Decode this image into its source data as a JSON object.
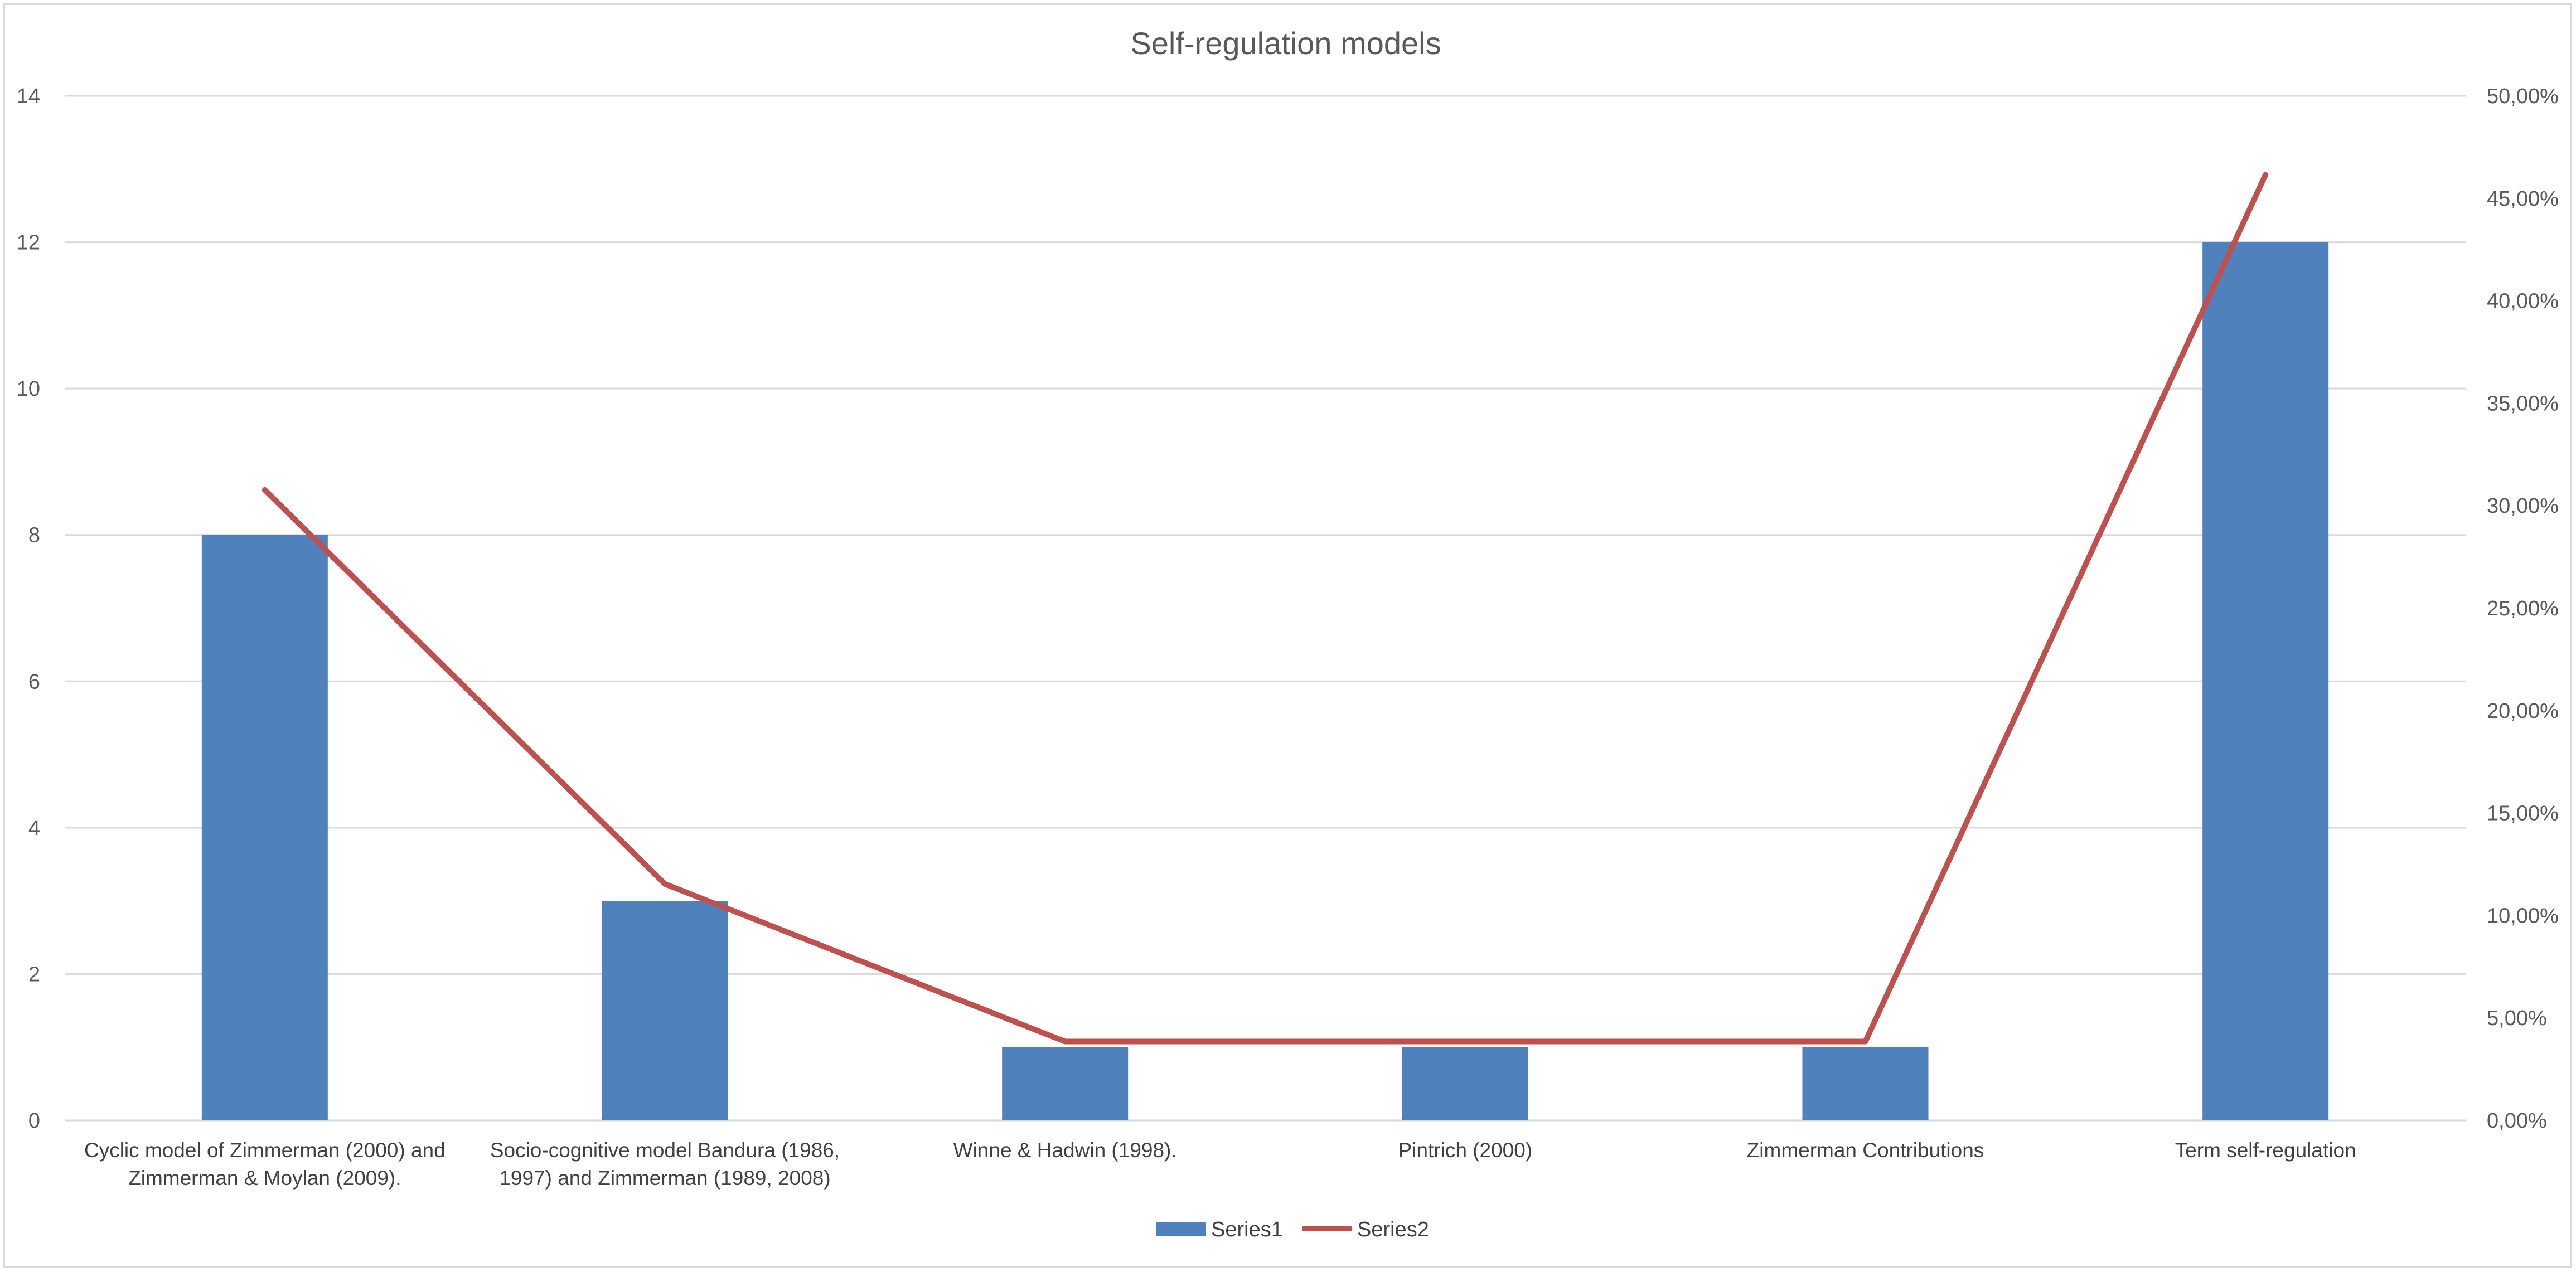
{
  "chart_data": {
    "type": "bar",
    "title": "Self-regulation models",
    "categories": [
      [
        "Cyclic model of Zimmerman (2000) and",
        "Zimmerman & Moylan (2009)."
      ],
      [
        "Socio-cognitive model Bandura (1986,",
        "1997) and  Zimmerman (1989, 2008)"
      ],
      [
        "Winne & Hadwin (1998)."
      ],
      [
        "Pintrich (2000)"
      ],
      [
        "Zimmerman Contributions"
      ],
      [
        "Term self-regulation"
      ]
    ],
    "series": [
      {
        "name": "Series1",
        "type": "bar",
        "axis": "left",
        "color": "#4f81bd",
        "values": [
          8,
          3,
          1,
          1,
          1,
          12
        ]
      },
      {
        "name": "Series2",
        "type": "line",
        "axis": "right",
        "color": "#c0504d",
        "values": [
          0.3077,
          0.1154,
          0.0385,
          0.0385,
          0.0385,
          0.4615
        ]
      }
    ],
    "y_left": {
      "min": 0,
      "max": 14,
      "ticks": [
        "0",
        "2",
        "4",
        "6",
        "8",
        "10",
        "12",
        "14"
      ],
      "tick_values": [
        0,
        2,
        4,
        6,
        8,
        10,
        12,
        14
      ]
    },
    "y_right": {
      "min": 0,
      "max": 0.5,
      "ticks": [
        "0,00%",
        "5,00%",
        "10,00%",
        "15,00%",
        "20,00%",
        "25,00%",
        "30,00%",
        "35,00%",
        "40,00%",
        "45,00%",
        "50,00%"
      ],
      "tick_values": [
        0,
        0.05,
        0.1,
        0.15,
        0.2,
        0.25,
        0.3,
        0.35,
        0.4,
        0.45,
        0.5
      ]
    },
    "grid": true,
    "legend": "bottom"
  }
}
